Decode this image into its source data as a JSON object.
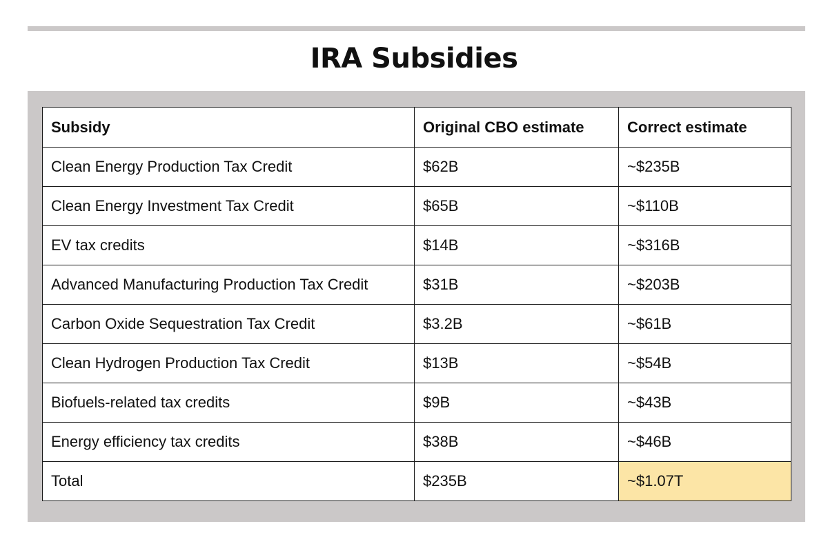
{
  "title": "IRA Subsidies",
  "table": {
    "headers": [
      "Subsidy",
      "Original CBO estimate",
      "Correct estimate"
    ],
    "rows": [
      [
        "Clean Energy Production Tax Credit",
        "$62B",
        "~$235B"
      ],
      [
        "Clean Energy Investment Tax Credit",
        "$65B",
        "~$110B"
      ],
      [
        "EV tax credits",
        "$14B",
        "~$316B"
      ],
      [
        "Advanced Manufacturing Production Tax Credit",
        "$31B",
        "~$203B"
      ],
      [
        "Carbon Oxide Sequestration Tax Credit",
        "$3.2B",
        "~$61B"
      ],
      [
        "Clean Hydrogen Production Tax Credit",
        "$13B",
        "~$54B"
      ],
      [
        "Biofuels-related tax credits",
        "$9B",
        "~$43B"
      ],
      [
        "Energy efficiency tax credits",
        "$38B",
        "~$46B"
      ],
      [
        "Total",
        "$235B",
        "~$1.07T"
      ]
    ]
  },
  "colors": {
    "panel": "#cbc8c8",
    "highlight": "#fce5a6"
  }
}
